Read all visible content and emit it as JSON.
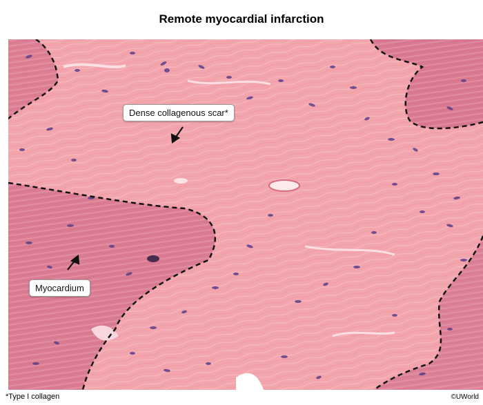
{
  "figure": {
    "title": "Remote myocardial infarction",
    "footnote": "*Type I collagen",
    "credit": "©UWorld"
  },
  "annotations": {
    "scar_label": "Dense collagenous scar*",
    "myocardium_label": "Myocardium"
  },
  "colors": {
    "scar_pink": "#f3a5ad",
    "myocardium_pink": "#dc7f93",
    "nucleus_purple": "#5b3f8a",
    "boundary_line": "#111111"
  }
}
